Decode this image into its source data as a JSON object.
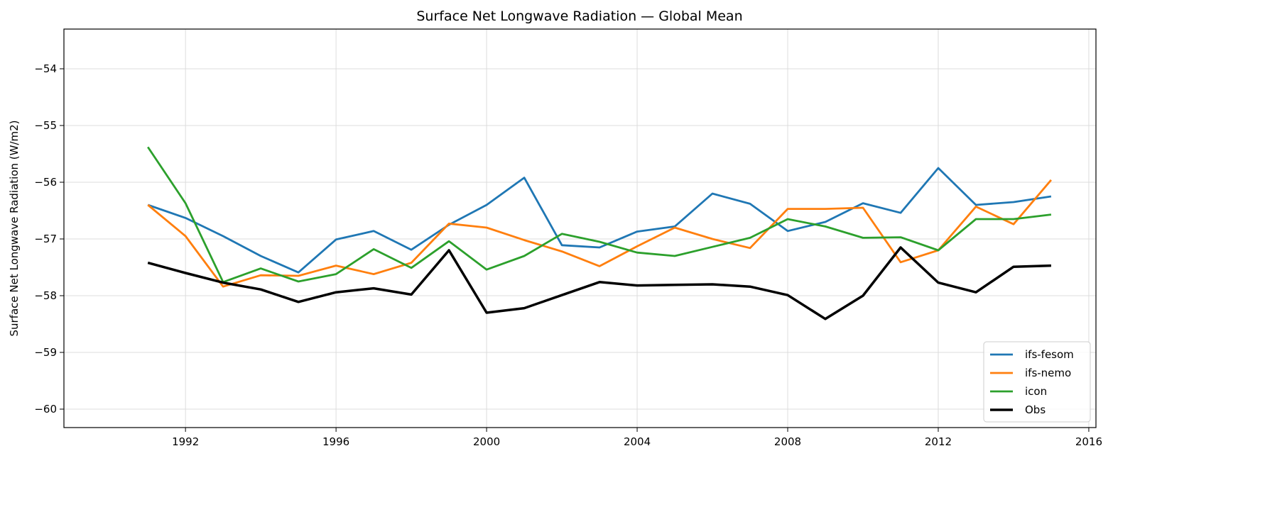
{
  "chart_data": {
    "type": "line",
    "title": "Surface Net Longwave Radiation — Global Mean",
    "xlabel": "",
    "ylabel": "Surface Net Longwave Radiation (W/m2)",
    "xlim": [
      1988.77,
      2016.19
    ],
    "ylim": [
      -60.325,
      -53.3
    ],
    "xticks": [
      1992,
      1996,
      2000,
      2004,
      2008,
      2012,
      2016
    ],
    "yticks": [
      -54,
      -55,
      -56,
      -57,
      -58,
      -59,
      -60
    ],
    "ytick_labels": [
      "−54",
      "−55",
      "−56",
      "−57",
      "−58",
      "−59",
      "−60"
    ],
    "grid": true,
    "legend_placement": "lower-right",
    "x": [
      1991,
      1992,
      1993,
      1994,
      1995,
      1996,
      1997,
      1998,
      1999,
      2000,
      2001,
      2002,
      2003,
      2004,
      2005,
      2006,
      2007,
      2008,
      2009,
      2010,
      2011,
      2012,
      2013,
      2014,
      2015
    ],
    "series": [
      {
        "name": "ifs-fesom",
        "color": "#1f77b4",
        "values": [
          -56.4,
          -56.63,
          -56.95,
          -57.3,
          -57.59,
          -57.01,
          -56.86,
          -57.19,
          -56.75,
          -56.4,
          -55.92,
          -57.11,
          -57.15,
          -56.87,
          -56.78,
          -56.2,
          -56.38,
          -56.86,
          -56.7,
          -56.37,
          -56.54,
          -55.75,
          -56.4,
          -56.35,
          -56.25
        ]
      },
      {
        "name": "ifs-nemo",
        "color": "#ff7f0e",
        "values": [
          -56.4,
          -56.95,
          -57.84,
          -57.64,
          -57.65,
          -57.47,
          -57.62,
          -57.42,
          -56.73,
          -56.8,
          -57.02,
          -57.22,
          -57.48,
          -57.13,
          -56.8,
          -57.0,
          -57.16,
          -56.47,
          -56.47,
          -56.45,
          -57.41,
          -57.2,
          -56.43,
          -56.74,
          -55.96
        ]
      },
      {
        "name": "icon",
        "color": "#2ca02c",
        "values": [
          -55.38,
          -56.37,
          -57.76,
          -57.52,
          -57.75,
          -57.62,
          -57.18,
          -57.51,
          -57.04,
          -57.54,
          -57.3,
          -56.91,
          -57.05,
          -57.24,
          -57.3,
          -57.14,
          -56.98,
          -56.65,
          -56.78,
          -56.98,
          -56.97,
          -57.2,
          -56.65,
          -56.65,
          -56.57
        ]
      },
      {
        "name": "Obs",
        "color": "#000000",
        "values": [
          -57.42,
          -57.6,
          -57.77,
          -57.89,
          -58.11,
          -57.94,
          -57.87,
          -57.98,
          -57.2,
          -58.3,
          -58.22,
          -57.99,
          -57.76,
          -57.82,
          -57.81,
          -57.8,
          -57.84,
          -57.99,
          -58.41,
          -58.0,
          -57.15,
          -57.77,
          -57.94,
          -57.49,
          -57.47
        ]
      }
    ]
  }
}
